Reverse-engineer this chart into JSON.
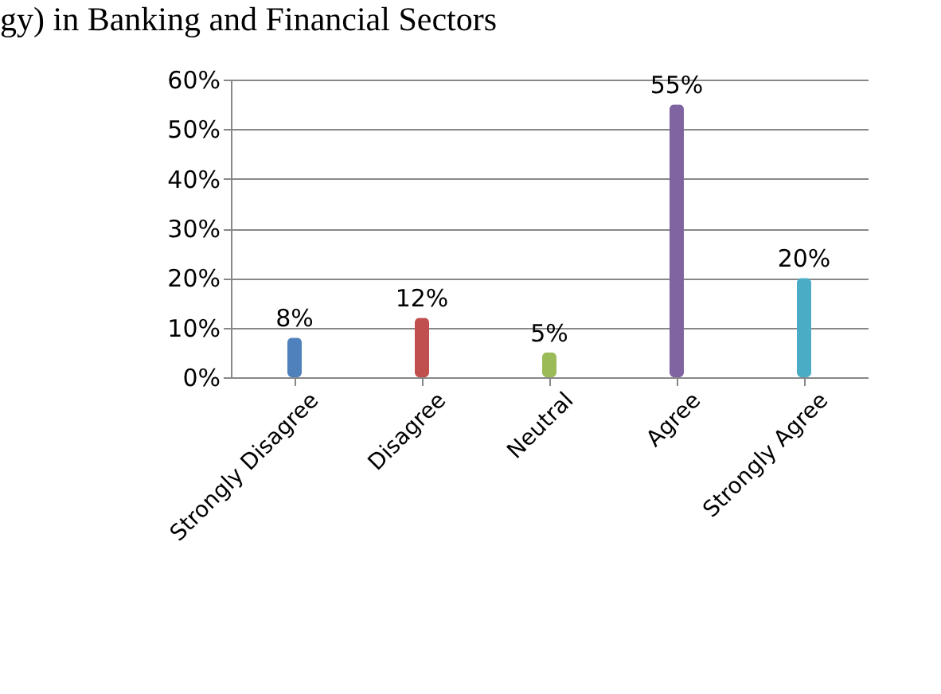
{
  "chart_data": {
    "type": "bar",
    "title": "gy) in Banking and Financial Sectors",
    "categories": [
      "Strongly Disagree",
      "Disagree",
      "Neutral",
      "Agree",
      "Strongly Agree"
    ],
    "values": [
      8,
      12,
      5,
      55,
      20
    ],
    "colors": [
      "#4f81bd",
      "#c0504d",
      "#9bbb59",
      "#8064a2",
      "#4bacc6"
    ],
    "value_labels": [
      "8%",
      "12%",
      "5%",
      "55%",
      "20%"
    ],
    "ylim": [
      0,
      60
    ],
    "yticks": [
      {
        "value": 0,
        "label": "0%"
      },
      {
        "value": 10,
        "label": "10%"
      },
      {
        "value": 20,
        "label": "20%"
      },
      {
        "value": 30,
        "label": "30%"
      },
      {
        "value": 40,
        "label": "40%"
      },
      {
        "value": 50,
        "label": "50%"
      },
      {
        "value": 60,
        "label": "60%"
      }
    ],
    "grid": "y"
  }
}
